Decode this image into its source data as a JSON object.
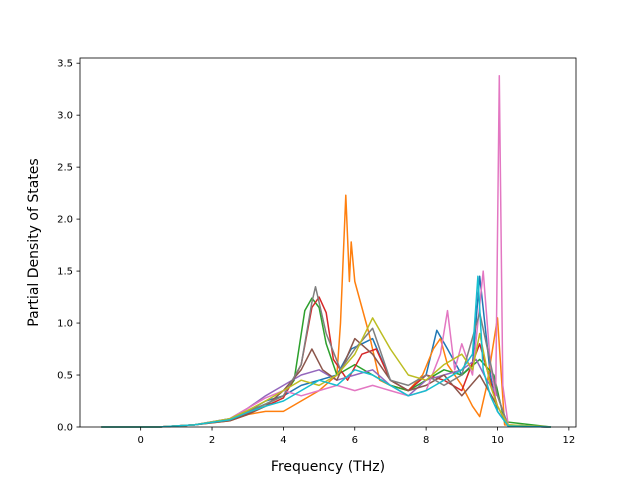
{
  "chart_data": {
    "type": "line",
    "title": "",
    "xlabel": "Frequency (THz)",
    "ylabel": "Partial Density of States",
    "xlim": [
      -1.7,
      12.2
    ],
    "ylim": [
      0,
      3.55
    ],
    "xticks": [
      0,
      2,
      4,
      6,
      8,
      10,
      12
    ],
    "yticks": [
      0.0,
      0.5,
      1.0,
      1.5,
      2.0,
      2.5,
      3.0,
      3.5
    ],
    "xtick_labels": [
      "0",
      "2",
      "4",
      "6",
      "8",
      "10",
      "12"
    ],
    "ytick_labels": [
      "0.0",
      "0.5",
      "1.0",
      "1.5",
      "2.0",
      "2.5",
      "3.0",
      "3.5"
    ],
    "legend": "none",
    "grid": false,
    "series": [
      {
        "color": "#1f77b4",
        "x": [
          -1.1,
          0.5,
          1.5,
          2.5,
          3.0,
          3.5,
          4.0,
          4.5,
          5.0,
          5.5,
          5.9,
          6.2,
          6.5,
          7.0,
          7.5,
          8.0,
          8.3,
          8.6,
          9.0,
          9.3,
          9.5,
          9.8,
          10.0,
          10.3,
          11.5
        ],
        "y": [
          0,
          0,
          0.02,
          0.08,
          0.15,
          0.25,
          0.3,
          0.4,
          0.45,
          0.5,
          0.75,
          0.8,
          0.85,
          0.45,
          0.35,
          0.5,
          0.93,
          0.75,
          0.5,
          0.6,
          1.45,
          0.5,
          0.15,
          0.01,
          0
        ]
      },
      {
        "color": "#ff7f0e",
        "x": [
          -1.1,
          0.5,
          1.5,
          2.5,
          3.0,
          3.5,
          4.0,
          4.5,
          5.0,
          5.5,
          5.6,
          5.75,
          5.85,
          5.9,
          6.0,
          6.2,
          6.4,
          6.7,
          7.0,
          7.5,
          7.9,
          8.2,
          8.4,
          8.6,
          9.0,
          9.3,
          9.5,
          9.7,
          10.0,
          10.2,
          11.5
        ],
        "y": [
          0,
          0,
          0.02,
          0.06,
          0.12,
          0.15,
          0.15,
          0.25,
          0.35,
          0.5,
          1.0,
          2.23,
          1.4,
          1.78,
          1.4,
          1.15,
          0.9,
          0.45,
          0.4,
          0.35,
          0.5,
          0.75,
          0.85,
          0.6,
          0.4,
          0.2,
          0.1,
          0.4,
          1.05,
          0.02,
          0
        ]
      },
      {
        "color": "#2ca02c",
        "x": [
          -1.1,
          0.5,
          1.5,
          2.5,
          3.0,
          3.5,
          4.0,
          4.3,
          4.6,
          4.8,
          5.0,
          5.2,
          5.5,
          6.0,
          6.5,
          7.0,
          7.5,
          8.0,
          8.5,
          9.0,
          9.5,
          9.9,
          10.2,
          11.5
        ],
        "y": [
          0,
          0,
          0.02,
          0.07,
          0.14,
          0.22,
          0.3,
          0.45,
          1.12,
          1.24,
          1.15,
          0.8,
          0.5,
          0.6,
          0.5,
          0.4,
          0.35,
          0.45,
          0.55,
          0.5,
          0.65,
          0.5,
          0.05,
          0
        ]
      },
      {
        "color": "#d62728",
        "x": [
          -1.1,
          0.5,
          1.5,
          2.5,
          3.0,
          3.5,
          4.0,
          4.5,
          4.8,
          5.0,
          5.2,
          5.4,
          5.8,
          6.2,
          6.6,
          7.0,
          7.5,
          8.0,
          8.5,
          9.0,
          9.5,
          10.0,
          10.3,
          11.5
        ],
        "y": [
          0,
          0,
          0.02,
          0.07,
          0.13,
          0.2,
          0.28,
          0.6,
          1.15,
          1.25,
          1.1,
          0.65,
          0.45,
          0.7,
          0.75,
          0.45,
          0.35,
          0.5,
          0.45,
          0.35,
          0.8,
          0.2,
          0.01,
          0
        ]
      },
      {
        "color": "#9467bd",
        "x": [
          -1.1,
          0.5,
          1.5,
          2.5,
          3.0,
          3.5,
          4.0,
          4.5,
          5.0,
          5.5,
          6.0,
          6.5,
          7.0,
          7.5,
          8.0,
          8.5,
          9.0,
          9.4,
          9.7,
          10.0,
          10.3,
          11.5
        ],
        "y": [
          0,
          0,
          0.02,
          0.08,
          0.18,
          0.3,
          0.4,
          0.5,
          0.55,
          0.45,
          0.5,
          0.55,
          0.4,
          0.3,
          0.45,
          0.5,
          0.55,
          0.65,
          0.45,
          0.3,
          0.01,
          0
        ]
      },
      {
        "color": "#8c564b",
        "x": [
          -1.1,
          0.5,
          1.5,
          2.5,
          3.0,
          3.5,
          4.0,
          4.5,
          4.8,
          5.1,
          5.5,
          6.0,
          6.5,
          7.0,
          7.5,
          8.0,
          8.5,
          9.0,
          9.5,
          10.0,
          10.3,
          11.5
        ],
        "y": [
          0,
          0,
          0.02,
          0.06,
          0.12,
          0.2,
          0.35,
          0.55,
          0.75,
          0.55,
          0.45,
          0.85,
          0.7,
          0.45,
          0.35,
          0.4,
          0.5,
          0.3,
          0.5,
          0.2,
          0.01,
          0
        ]
      },
      {
        "color": "#e377c2",
        "x": [
          -1.1,
          0.5,
          1.5,
          2.5,
          3.0,
          3.5,
          4.0,
          4.5,
          5.0,
          5.5,
          6.0,
          6.5,
          7.0,
          7.5,
          8.0,
          8.4,
          8.6,
          8.8,
          9.0,
          9.3,
          9.6,
          9.8,
          9.95,
          10.05,
          10.15,
          10.3,
          11.5
        ],
        "y": [
          0,
          0,
          0.02,
          0.08,
          0.18,
          0.28,
          0.35,
          0.3,
          0.35,
          0.4,
          0.35,
          0.4,
          0.35,
          0.3,
          0.35,
          0.7,
          1.12,
          0.55,
          0.8,
          0.5,
          1.5,
          0.6,
          0.3,
          3.38,
          0.4,
          0.02,
          0
        ]
      },
      {
        "color": "#7f7f7f",
        "x": [
          -1.1,
          0.5,
          1.5,
          2.5,
          3.0,
          3.5,
          4.0,
          4.5,
          4.8,
          4.9,
          5.2,
          5.6,
          6.0,
          6.5,
          7.0,
          7.5,
          8.0,
          8.5,
          9.0,
          9.5,
          10.0,
          10.3,
          11.5
        ],
        "y": [
          0,
          0,
          0.02,
          0.07,
          0.15,
          0.22,
          0.3,
          0.6,
          1.2,
          1.35,
          0.9,
          0.55,
          0.75,
          0.95,
          0.45,
          0.4,
          0.5,
          0.4,
          0.5,
          1.1,
          0.3,
          0.01,
          0
        ]
      },
      {
        "color": "#bcbd22",
        "x": [
          -1.1,
          0.5,
          1.5,
          2.5,
          3.0,
          3.5,
          4.0,
          4.5,
          5.0,
          5.5,
          6.0,
          6.5,
          7.0,
          7.5,
          8.0,
          8.5,
          9.0,
          9.3,
          9.5,
          9.8,
          10.0,
          10.3,
          11.5
        ],
        "y": [
          0,
          0,
          0.02,
          0.08,
          0.16,
          0.25,
          0.35,
          0.45,
          0.4,
          0.5,
          0.7,
          1.05,
          0.75,
          0.5,
          0.45,
          0.6,
          0.7,
          0.55,
          0.9,
          0.4,
          0.2,
          0.02,
          0
        ]
      },
      {
        "color": "#17becf",
        "x": [
          -1.1,
          0.5,
          1.5,
          2.5,
          3.0,
          3.5,
          4.0,
          4.5,
          5.0,
          5.5,
          6.0,
          6.5,
          7.0,
          7.5,
          8.0,
          8.5,
          9.0,
          9.3,
          9.45,
          9.6,
          9.8,
          10.0,
          10.3,
          11.5
        ],
        "y": [
          0,
          0,
          0.02,
          0.07,
          0.14,
          0.2,
          0.25,
          0.35,
          0.45,
          0.4,
          0.55,
          0.5,
          0.4,
          0.3,
          0.35,
          0.45,
          0.55,
          0.7,
          1.45,
          0.55,
          0.3,
          0.15,
          0.01,
          0
        ]
      }
    ]
  }
}
